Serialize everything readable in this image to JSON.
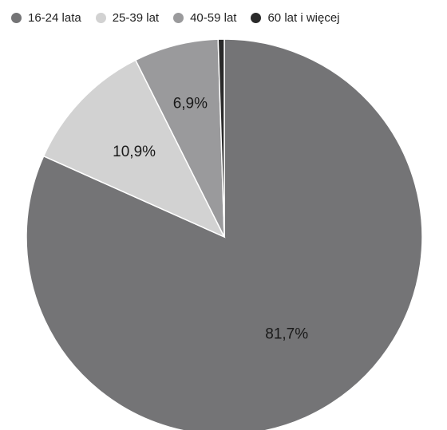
{
  "chart_data": {
    "type": "pie",
    "title": "",
    "categories": [
      "16-24 lata",
      "25-39 lat",
      "40-59 lat",
      "60 lat i więcej"
    ],
    "values": [
      81.7,
      10.9,
      6.9,
      0.5
    ],
    "value_labels": [
      "81,7%",
      "10,9%",
      "6,9%",
      ""
    ],
    "colors": [
      "#747476",
      "#d2d2d2",
      "#9a9a9c",
      "#2a2a2a"
    ],
    "legend_position": "top",
    "start": "12 o'clock",
    "direction": "clockwise"
  }
}
